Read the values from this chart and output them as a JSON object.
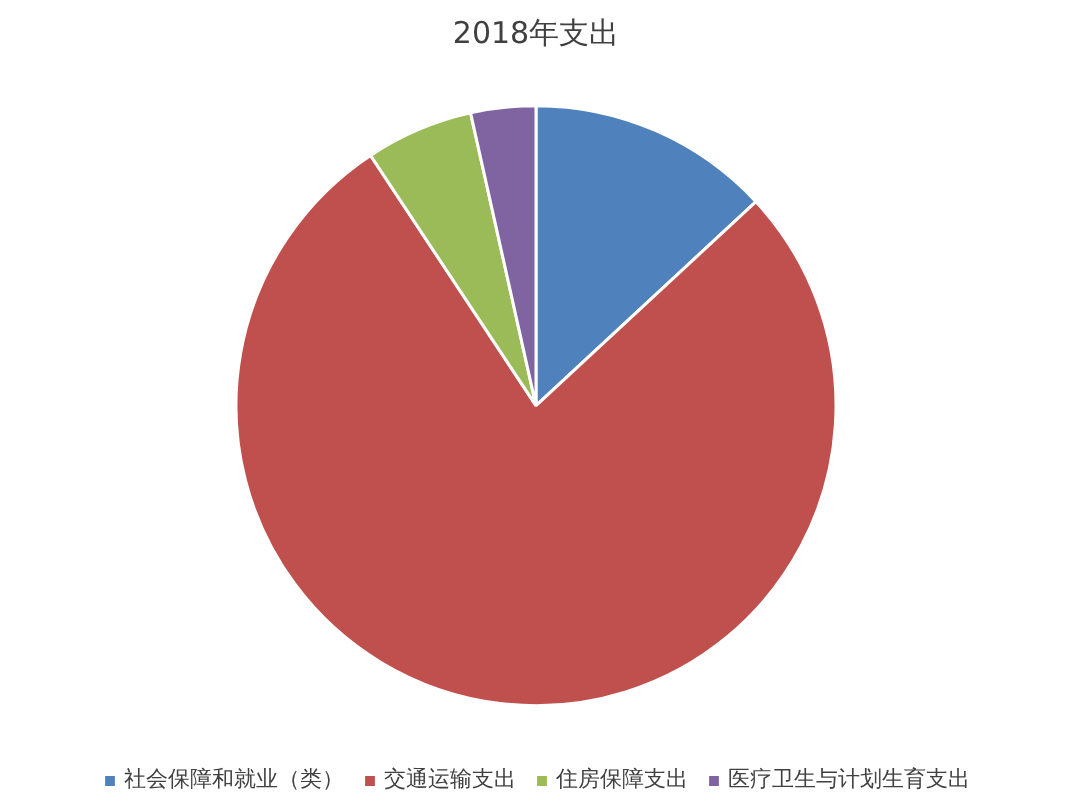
{
  "chart_data": {
    "type": "pie",
    "title": "2018年支出",
    "categories": [
      "社会保障和就业（类）",
      "交通运输支出",
      "住房保障支出",
      "医疗卫生与计划生育支出"
    ],
    "values": [
      13.1,
      77.6,
      5.8,
      3.5
    ],
    "colors": [
      "#4f81bd",
      "#c0504d",
      "#9bbb59",
      "#8064a2"
    ],
    "legend": "bottom"
  }
}
